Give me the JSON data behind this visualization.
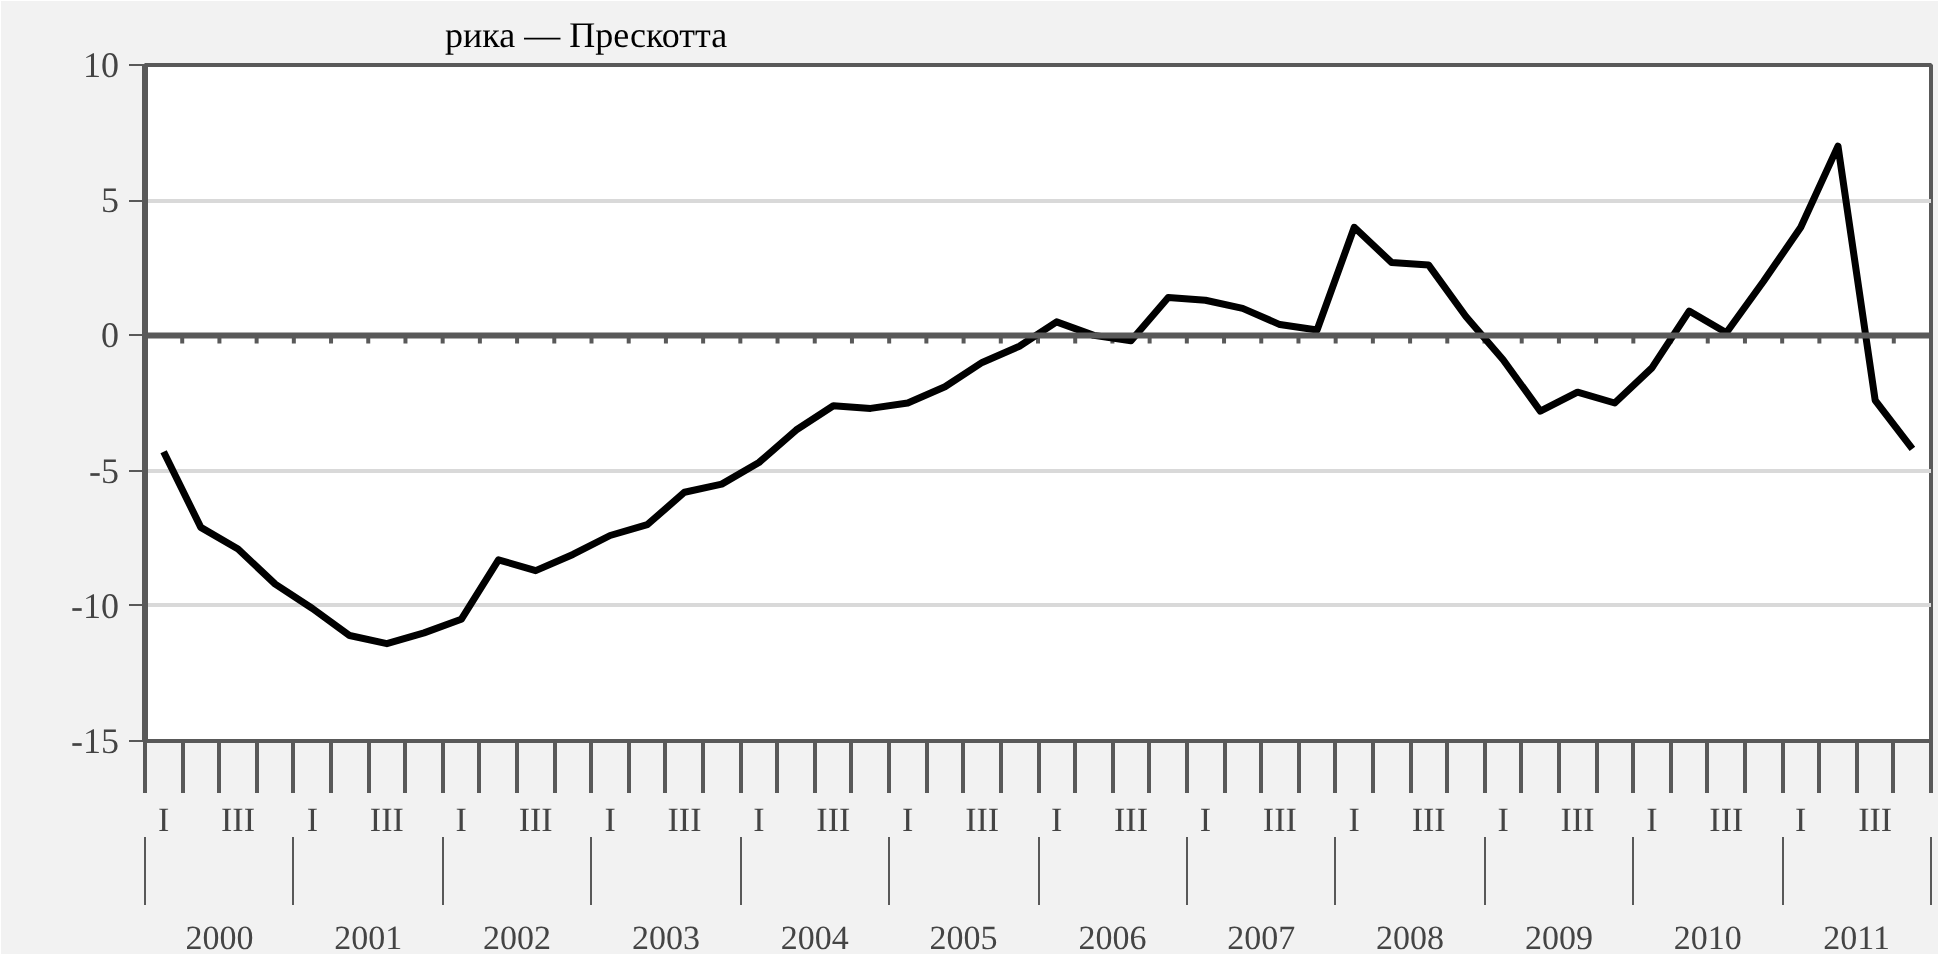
{
  "chart_data": {
    "type": "line",
    "title": "рика — Прескотта",
    "categories": [
      "I",
      null,
      "III",
      null,
      "I",
      null,
      "III",
      null,
      "I",
      null,
      "III",
      null,
      "I",
      null,
      "III",
      null,
      "I",
      null,
      "III",
      null,
      "I",
      null,
      "III",
      null,
      "I",
      null,
      "III",
      null,
      "I",
      null,
      "III",
      null,
      "I",
      null,
      "III",
      null,
      "I",
      null,
      "III",
      null,
      "I",
      null,
      "III",
      null,
      "I",
      null,
      "III",
      null
    ],
    "annotations": [
      "2000",
      "2001",
      "2002",
      "2003",
      "2004",
      "2005",
      "2006",
      "2007",
      "2008",
      "2009",
      "2010",
      "2011"
    ],
    "series": [
      {
        "color": "#000000",
        "values": [
          -4.3,
          -7.1,
          -7.9,
          -9.2,
          -10.1,
          -11.1,
          -11.4,
          -11.0,
          -10.5,
          -8.3,
          -8.7,
          -8.1,
          -7.4,
          -7.0,
          -5.8,
          -5.5,
          -4.7,
          -3.5,
          -2.6,
          -2.7,
          -2.5,
          -1.9,
          -1.0,
          -0.4,
          0.5,
          0.0,
          -0.2,
          1.4,
          1.3,
          1.0,
          0.4,
          0.2,
          4.0,
          2.7,
          2.6,
          0.7,
          -0.9,
          -2.8,
          -2.1,
          -2.5,
          -1.2,
          0.9,
          0.1,
          2.0,
          4.0,
          7.0,
          -2.4,
          -4.2
        ]
      }
    ],
    "ylim": [
      -15,
      10
    ],
    "yticks": [
      -15,
      -10,
      -5,
      0,
      5,
      10
    ],
    "grid": "y",
    "ref_lines": [
      {
        "axis": "y",
        "value": 0,
        "color": "#595959"
      }
    ],
    "marker": "none",
    "line_style": "solid"
  }
}
